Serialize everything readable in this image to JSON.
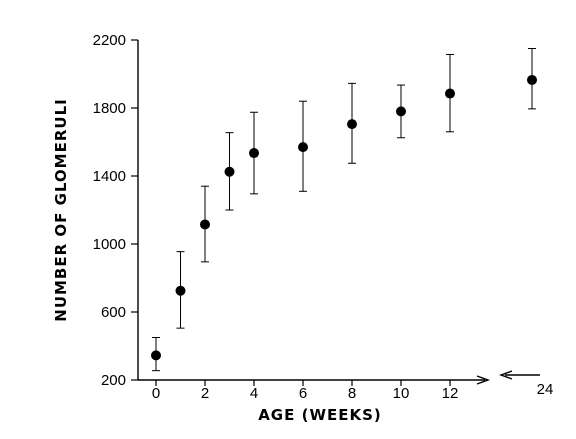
{
  "chart_data": {
    "type": "scatter",
    "title": "",
    "xlabel": "AGE (WEEKS)",
    "ylabel": "NUMBER OF GLOMERULI",
    "ylim": [
      200,
      2200
    ],
    "y_ticks": [
      200,
      600,
      1000,
      1400,
      1800,
      2200
    ],
    "x_ticks": [
      0,
      2,
      4,
      6,
      8,
      10,
      12
    ],
    "x_break_label": "24",
    "grid": false,
    "points": [
      {
        "x": 0,
        "y": 345,
        "low": 255,
        "high": 450
      },
      {
        "x": 1,
        "y": 725,
        "low": 505,
        "high": 955
      },
      {
        "x": 2,
        "y": 1115,
        "low": 895,
        "high": 1340
      },
      {
        "x": 3,
        "y": 1425,
        "low": 1200,
        "high": 1655
      },
      {
        "x": 4,
        "y": 1535,
        "low": 1295,
        "high": 1775
      },
      {
        "x": 6,
        "y": 1570,
        "low": 1310,
        "high": 1840
      },
      {
        "x": 8,
        "y": 1705,
        "low": 1475,
        "high": 1945
      },
      {
        "x": 10,
        "y": 1780,
        "low": 1625,
        "high": 1935
      },
      {
        "x": 12,
        "y": 1885,
        "low": 1660,
        "high": 2115
      },
      {
        "x": 24,
        "y": 1965,
        "low": 1795,
        "high": 2150
      }
    ]
  }
}
